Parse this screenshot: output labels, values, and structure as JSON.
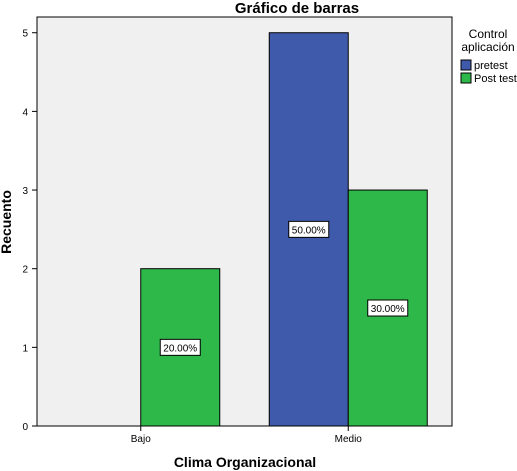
{
  "chart_data": {
    "type": "bar",
    "title": "Gráfico de barras",
    "xlabel": "Clima Organizacional",
    "ylabel": "Recuento",
    "categories": [
      "Bajo",
      "Medio"
    ],
    "series": [
      {
        "name": "pretest",
        "values": [
          0,
          5
        ],
        "color": "#3f5aab",
        "labels": [
          "",
          "50.00%"
        ]
      },
      {
        "name": "Post test",
        "values": [
          2,
          3
        ],
        "color": "#2fb84a",
        "labels": [
          "20.00%",
          "30.00%"
        ]
      }
    ],
    "ylim": [
      0,
      5.2
    ],
    "yticks": [
      0,
      1,
      2,
      3,
      4,
      5
    ],
    "grid": false,
    "legend": {
      "title_lines": [
        "Control",
        "aplicación"
      ],
      "placement": "right"
    },
    "plot_background": "#f0f0f0"
  }
}
